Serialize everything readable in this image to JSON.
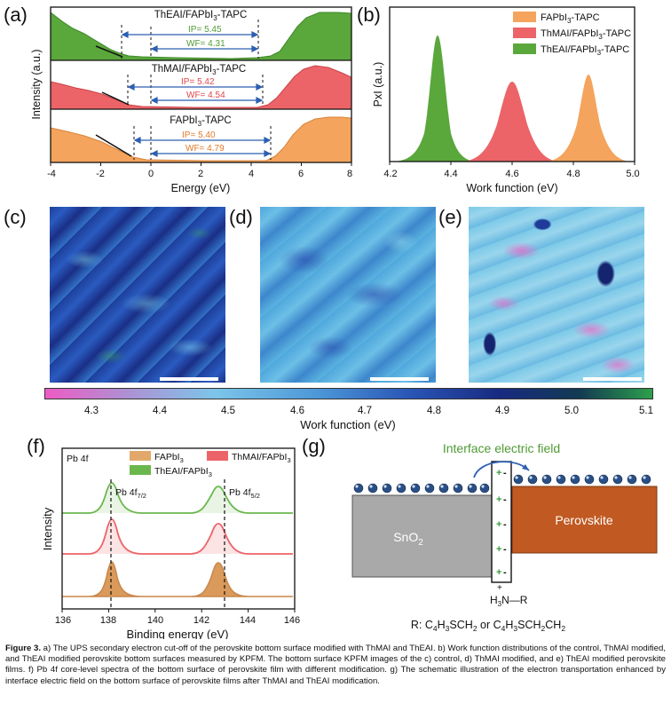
{
  "panels": {
    "a": "(a)",
    "b": "(b)",
    "c": "(c)",
    "d": "(d)",
    "e": "(e)",
    "f": "(f)",
    "g": "(g)"
  },
  "panel_a": {
    "ylabel": "Intensity (a.u.)",
    "xlabel": "Energy (eV)",
    "xticks": [
      "-4",
      "-2",
      "0",
      "2",
      "4",
      "6",
      "8"
    ],
    "traces": [
      {
        "title": "ThEAI/FAPbI",
        "sub": "3",
        "title2": "-TAPC",
        "ip": "IP= 5.45",
        "wf": "WF= 4.31",
        "color": "#5aa73c",
        "text_color": "#4f9a33"
      },
      {
        "title": "ThMAI/FAPbI",
        "sub": "3",
        "title2": "-TAPC",
        "ip": "IP= 5.42",
        "wf": "WF= 4.54",
        "color": "#ec6468",
        "text_color": "#e0474c"
      },
      {
        "title": "FAPbI",
        "sub": "3",
        "title2": "-TAPC",
        "ip": "IP= 5.40",
        "wf": "WF= 4.79",
        "color": "#f4a45d",
        "text_color": "#e07a2a"
      }
    ]
  },
  "panel_b": {
    "ylabel": "PxI (a.u.)",
    "xlabel": "Work function (eV)",
    "xticks": [
      "4.2",
      "4.4",
      "4.6",
      "4.8",
      "5.0"
    ],
    "legend": [
      {
        "label": "FAPbI",
        "sub": "3",
        "label2": "-TAPC",
        "color": "#f4a45d"
      },
      {
        "label": "ThMAI/FAPbI",
        "sub": "3",
        "label2": "-TAPC",
        "color": "#ec6468"
      },
      {
        "label": "ThEAI/FAPbI",
        "sub": "3",
        "label2": "-TAPC",
        "color": "#5aa73c"
      }
    ]
  },
  "colorbar": {
    "label": "Work function (eV)",
    "ticks": [
      "4.3",
      "4.4",
      "4.5",
      "4.6",
      "4.7",
      "4.8",
      "4.9",
      "5.0",
      "5.1"
    ]
  },
  "panel_f": {
    "corner": "Pb 4f",
    "ylabel": "Intensity",
    "xlabel": "Binding energy (eV)",
    "xticks": [
      "136",
      "138",
      "140",
      "142",
      "144",
      "146"
    ],
    "peak1": "Pb 4f",
    "peak1_sub": "7/2",
    "peak2": "Pb 4f",
    "peak2_sub": "5/2",
    "legend": [
      {
        "label": "FAPbI",
        "sub": "3",
        "color": "#e2a86b"
      },
      {
        "label": "ThMAI/FAPbI",
        "sub": "3",
        "color": "#ec6468"
      },
      {
        "label": "ThEAI/FAPbI",
        "sub": "3",
        "color": "#6bb74e"
      }
    ]
  },
  "panel_g": {
    "title": "Interface electric field",
    "left": "SnO",
    "left_sub": "2",
    "right": "Perovskite",
    "amine": "H",
    "amine_sub": "3",
    "amine2": "N—R",
    "plus_top": "+",
    "r_text": "R: C",
    "r1": "4",
    "r2": "H",
    "r3": "3",
    "r4": "SCH",
    "r5": "2",
    "r6": " or C",
    "r7": "4",
    "r8": "H",
    "r9": "3",
    "r10": "SCH",
    "r11": "2",
    "r12": "CH",
    "r13": "2"
  },
  "caption": {
    "fig": "Figure 3.",
    "text": " a) The UPS secondary electron cut-off of the perovskite bottom surface modified with ThMAI and ThEAI. b) Work function distributions of the control, ThMAI modified, and ThEAI modified perovskite bottom surfaces measured by KPFM. The bottom surface KPFM images of the c) control, d) ThMAI modified, and e) ThEAI modified perovskite films. f) Pb 4f core-level spectra of the bottom surface of perovskite film with different modification. g) The schematic illustration of the electron transportation enhanced by interface electric field on the bottom surface of perovskite films after ThMAI and ThEAI modification."
  }
}
